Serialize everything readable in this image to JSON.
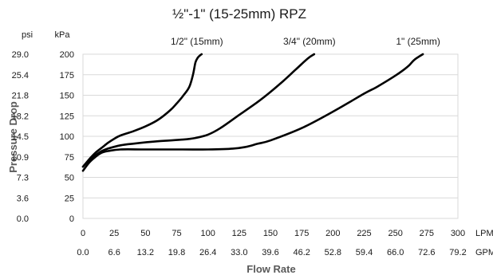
{
  "chart_data": {
    "type": "line",
    "title": "½\"-1\" (15-25mm) RPZ",
    "xlabel": "Flow Rate",
    "ylabel": "Pressure Drop",
    "x_unit_primary": "LPM",
    "x_unit_secondary": "GPM",
    "y_unit_primary": "kPa",
    "y_unit_secondary": "psi",
    "xlim": [
      0,
      300
    ],
    "ylim": [
      0,
      200
    ],
    "x_ticks": [
      0,
      25,
      50,
      75,
      100,
      125,
      150,
      175,
      200,
      225,
      250,
      275,
      300
    ],
    "x_ticks_secondary": [
      "0.0",
      "6.6",
      "13.2",
      "19.8",
      "26.4",
      "33.0",
      "39.6",
      "46.2",
      "52.8",
      "59.4",
      "66.0",
      "72.6",
      "79.2"
    ],
    "y_ticks": [
      0,
      25,
      50,
      75,
      100,
      125,
      150,
      175,
      200
    ],
    "y_ticks_secondary": [
      "0.0",
      "3.6",
      "7.3",
      "10.9",
      "14.5",
      "18.2",
      "21.8",
      "25.4",
      "29.0"
    ],
    "grid": "horizontal",
    "series": [
      {
        "name": "1/2\" (15mm)",
        "x": [
          0,
          5,
          10,
          15,
          20,
          25,
          30,
          40,
          50,
          60,
          70,
          75,
          80,
          85,
          88,
          90,
          92,
          94,
          95
        ],
        "y": [
          63,
          72,
          80,
          86,
          92,
          97,
          101,
          106,
          112,
          120,
          132,
          140,
          149,
          160,
          175,
          190,
          196,
          199,
          200
        ]
      },
      {
        "name": "3/4\" (20mm)",
        "x": [
          0,
          5,
          10,
          15,
          20,
          30,
          40,
          60,
          80,
          90,
          100,
          110,
          125,
          140,
          150,
          160,
          170,
          180,
          185
        ],
        "y": [
          63,
          71,
          77,
          82,
          85,
          89,
          91,
          94,
          96,
          98,
          102,
          110,
          126,
          142,
          154,
          167,
          181,
          195,
          200
        ]
      },
      {
        "name": "1\" (25mm)",
        "x": [
          0,
          5,
          10,
          15,
          20,
          30,
          50,
          80,
          100,
          120,
          130,
          140,
          150,
          175,
          200,
          225,
          235,
          250,
          260,
          265,
          272
        ],
        "y": [
          58,
          68,
          75,
          80,
          82,
          84,
          84,
          84,
          84,
          85,
          87,
          91,
          95,
          110,
          130,
          152,
          160,
          174,
          185,
          193,
          200
        ]
      }
    ]
  }
}
